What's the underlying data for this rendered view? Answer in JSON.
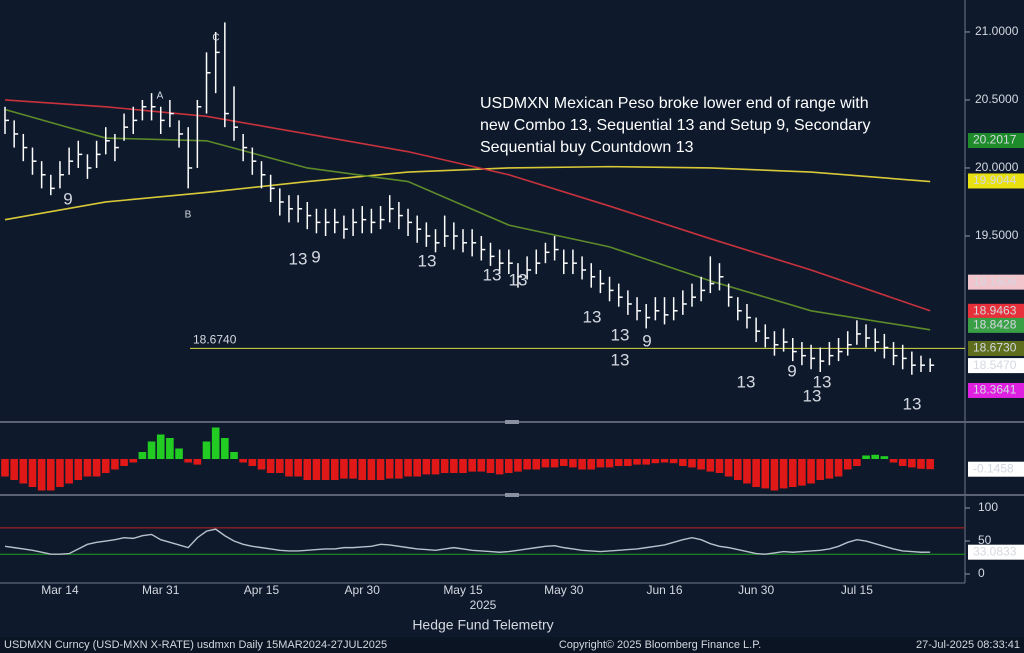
{
  "chart_data": [
    {
      "type": "ohlc",
      "annotation": [
        "USDMXN Mexican Peso broke lower end of range with",
        "new Combo 13, Sequential 13 and Setup 9, Secondary",
        "Sequential buy Countdown 13"
      ],
      "categories": [
        null,
        null,
        null,
        null,
        null,
        null,
        "Mar 14",
        null,
        null,
        null,
        null,
        null,
        null,
        null,
        null,
        null,
        null,
        "Mar 31",
        null,
        null,
        null,
        null,
        null,
        null,
        null,
        null,
        null,
        null,
        "Apr 15",
        null,
        null,
        null,
        null,
        null,
        null,
        null,
        null,
        null,
        null,
        "Apr 30",
        null,
        null,
        null,
        null,
        null,
        null,
        null,
        null,
        null,
        null,
        "May 15",
        null,
        null,
        null,
        null,
        null,
        null,
        null,
        null,
        null,
        null,
        "May 30",
        null,
        null,
        null,
        null,
        null,
        null,
        null,
        null,
        null,
        null,
        "Jun 16",
        null,
        null,
        null,
        null,
        null,
        null,
        null,
        null,
        null,
        "Jun 30",
        null,
        null,
        null,
        null,
        null,
        null,
        null,
        null,
        null,
        null,
        "Jul 15",
        null,
        null,
        null,
        null,
        null,
        null,
        null,
        null
      ],
      "year_label": "2025",
      "ylim": [
        18.147,
        21.235
      ],
      "yticks": [
        {
          "value": 21,
          "label": "21.0000"
        },
        {
          "value": 20.5,
          "label": "20.5000"
        },
        {
          "value": 20,
          "label": "20.0000"
        },
        {
          "value": 19.5,
          "label": "19.5000"
        }
      ],
      "bar_color": "#ffffff",
      "high": [
        20.45,
        20.35,
        20.25,
        20.15,
        20.05,
        19.95,
        20.05,
        20.15,
        20.2,
        20.1,
        20.2,
        20.3,
        20.25,
        20.4,
        20.45,
        20.5,
        20.55,
        20.45,
        20.5,
        20.35,
        20.3,
        20.5,
        20.85,
        21.0,
        21.07,
        20.6,
        20.25,
        20.15,
        20.05,
        19.95,
        19.85,
        19.8,
        19.8,
        19.75,
        19.7,
        19.7,
        19.7,
        19.65,
        19.7,
        19.72,
        19.7,
        19.72,
        19.8,
        19.75,
        19.7,
        19.65,
        19.6,
        19.55,
        19.65,
        19.6,
        19.55,
        19.55,
        19.5,
        19.45,
        19.4,
        19.4,
        19.3,
        19.35,
        19.4,
        19.45,
        19.5,
        19.4,
        19.4,
        19.35,
        19.3,
        19.25,
        19.2,
        19.15,
        19.1,
        19.05,
        19.0,
        19.05,
        19.05,
        19.05,
        19.1,
        19.15,
        19.2,
        19.35,
        19.3,
        19.15,
        19.05,
        19.0,
        18.9,
        18.85,
        18.8,
        18.82,
        18.75,
        18.72,
        18.7,
        18.68,
        18.72,
        18.75,
        18.8,
        18.88,
        18.85,
        18.82,
        18.78,
        18.72,
        18.7,
        18.65,
        18.62,
        18.6
      ],
      "low": [
        20.25,
        20.15,
        20.05,
        19.95,
        19.85,
        19.8,
        19.85,
        19.95,
        20.0,
        19.92,
        20.0,
        20.1,
        20.05,
        20.2,
        20.25,
        20.35,
        20.35,
        20.25,
        20.3,
        20.15,
        19.85,
        20.0,
        20.4,
        20.55,
        20.3,
        20.2,
        20.05,
        19.95,
        19.85,
        19.75,
        19.65,
        19.6,
        19.6,
        19.55,
        19.52,
        19.5,
        19.52,
        19.48,
        19.5,
        19.52,
        19.52,
        19.55,
        19.6,
        19.55,
        19.5,
        19.45,
        19.42,
        19.38,
        19.42,
        19.4,
        19.38,
        19.35,
        19.32,
        19.28,
        19.22,
        19.22,
        19.12,
        19.18,
        19.22,
        19.3,
        19.32,
        19.22,
        19.22,
        19.18,
        19.12,
        19.08,
        19.02,
        18.98,
        18.92,
        18.88,
        18.82,
        18.88,
        18.85,
        18.88,
        18.92,
        18.98,
        19.02,
        19.08,
        19.1,
        18.98,
        18.88,
        18.82,
        18.72,
        18.68,
        18.62,
        18.65,
        18.58,
        18.55,
        18.52,
        18.5,
        18.55,
        18.58,
        18.62,
        18.7,
        18.68,
        18.65,
        18.6,
        18.55,
        18.52,
        18.48,
        18.5,
        18.5
      ],
      "close": [
        20.35,
        20.25,
        20.15,
        20.05,
        19.95,
        19.85,
        19.95,
        20.05,
        20.1,
        20.0,
        20.1,
        20.2,
        20.15,
        20.3,
        20.35,
        20.45,
        20.45,
        20.35,
        20.4,
        20.25,
        20.0,
        20.45,
        20.7,
        20.85,
        20.4,
        20.3,
        20.15,
        20.05,
        19.95,
        19.85,
        19.75,
        19.7,
        19.7,
        19.65,
        19.6,
        19.6,
        19.6,
        19.55,
        19.6,
        19.62,
        19.6,
        19.62,
        19.7,
        19.65,
        19.6,
        19.55,
        19.5,
        19.45,
        19.5,
        19.5,
        19.45,
        19.45,
        19.4,
        19.35,
        19.3,
        19.3,
        19.2,
        19.25,
        19.3,
        19.38,
        19.4,
        19.3,
        19.3,
        19.25,
        19.2,
        19.15,
        19.1,
        19.05,
        19.0,
        18.95,
        18.9,
        18.95,
        18.92,
        18.95,
        19.0,
        19.05,
        19.1,
        19.15,
        19.2,
        19.05,
        18.95,
        18.9,
        18.8,
        18.75,
        18.7,
        18.72,
        18.65,
        18.62,
        18.6,
        18.58,
        18.62,
        18.65,
        18.7,
        18.78,
        18.75,
        18.72,
        18.68,
        18.62,
        18.6,
        18.55,
        18.55,
        18.55
      ],
      "moving_averages": [
        {
          "color": "#d8c838",
          "x": [
            0,
            11,
            22,
            33,
            44,
            55,
            66,
            77,
            88,
            101
          ],
          "values": [
            19.62,
            19.75,
            19.82,
            19.9,
            19.97,
            20.0,
            20.01,
            20.0,
            19.97,
            19.9
          ]
        },
        {
          "color": "#c8323c",
          "x": [
            0,
            11,
            22,
            33,
            44,
            55,
            66,
            77,
            88,
            101
          ],
          "values": [
            20.5,
            20.45,
            20.38,
            20.25,
            20.12,
            19.95,
            19.72,
            19.48,
            19.25,
            18.95
          ]
        },
        {
          "color": "#5e8a2a",
          "x": [
            0,
            11,
            22,
            33,
            44,
            55,
            66,
            77,
            88,
            101
          ],
          "values": [
            20.43,
            20.22,
            20.2,
            20.0,
            19.9,
            19.58,
            19.42,
            19.17,
            18.95,
            18.81
          ]
        }
      ],
      "reference_line": {
        "value": {
          "value": 18.674,
          "label": "18.6740"
        },
        "color": "#d8d840"
      },
      "price_tags": [
        {
          "value": 20.2017,
          "color": "#1e8c2a",
          "text_color": "#ffffff"
        },
        {
          "value": 19.9044,
          "color": "#e8e010",
          "text_color": "#000000"
        },
        {
          "value": 19.1606,
          "color": "#f2c4cc",
          "text_color": "#202020"
        },
        {
          "value": 18.9463,
          "color": "#e8303a",
          "text_color": "#ffffff"
        },
        {
          "value": 18.8428,
          "color": "#3aa046",
          "text_color": "#ffffff"
        },
        {
          "value": {
            "value": 18.673,
            "label": "18.6730"
          },
          "color": "#5e6e1c",
          "text_color": "#ffffff"
        },
        {
          "value": {
            "value": 18.547,
            "label": "18.5470"
          },
          "color": "#ffffff",
          "text_color": "#000000"
        },
        {
          "value": 18.3641,
          "color": "#e020e0",
          "text_color": "#ffffff"
        }
      ],
      "td_labels": [
        {
          "text": "9",
          "color": "#3ad13a"
        },
        {
          "text": "A",
          "color": "#e8e020"
        },
        {
          "text": "B",
          "color": "#e8e020"
        },
        {
          "text": "C",
          "color": "#e8e020"
        },
        {
          "text": "13",
          "color": "#e8902a"
        },
        {
          "text": "9",
          "color": "#3ad13a"
        },
        {
          "text": "13",
          "color": "#e0242a"
        },
        {
          "text": "13",
          "color": "#c030d0"
        },
        {
          "text": "13",
          "color": "#e8902a"
        },
        {
          "text": "13",
          "color": "#c030d0"
        },
        {
          "text": "13",
          "color": "#e0242a"
        },
        {
          "text": "13",
          "color": "#c030d0"
        },
        {
          "text": "9",
          "color": "#3ad13a"
        },
        {
          "text": "13",
          "color": "#c030d0"
        },
        {
          "text": "9",
          "color": "#3ad13a"
        },
        {
          "text": "13",
          "color": "#e8902a"
        },
        {
          "text": "13",
          "color": "#c030d0"
        },
        {
          "text": "13",
          "color": "#e0242a"
        }
      ]
    },
    {
      "type": "bar",
      "values": [
        -0.25,
        -0.3,
        -0.35,
        -0.4,
        -0.45,
        -0.45,
        -0.4,
        -0.35,
        -0.3,
        -0.25,
        -0.25,
        -0.2,
        -0.15,
        -0.1,
        -0.05,
        0.1,
        0.25,
        0.35,
        0.3,
        0.15,
        -0.05,
        -0.08,
        0.25,
        0.45,
        0.3,
        0.1,
        -0.05,
        -0.1,
        -0.15,
        -0.2,
        -0.2,
        -0.25,
        -0.25,
        -0.3,
        -0.3,
        -0.3,
        -0.3,
        -0.28,
        -0.28,
        -0.3,
        -0.3,
        -0.3,
        -0.28,
        -0.28,
        -0.25,
        -0.25,
        -0.22,
        -0.22,
        -0.2,
        -0.2,
        -0.2,
        -0.18,
        -0.18,
        -0.2,
        -0.22,
        -0.2,
        -0.18,
        -0.15,
        -0.15,
        -0.12,
        -0.12,
        -0.1,
        -0.12,
        -0.15,
        -0.15,
        -0.12,
        -0.12,
        -0.1,
        -0.1,
        -0.08,
        -0.08,
        -0.06,
        -0.05,
        -0.06,
        -0.1,
        -0.12,
        -0.15,
        -0.18,
        -0.2,
        -0.25,
        -0.3,
        -0.35,
        -0.4,
        -0.42,
        -0.45,
        -0.42,
        -0.4,
        -0.38,
        -0.35,
        -0.3,
        -0.28,
        -0.25,
        -0.15,
        -0.1,
        0.05,
        0.06,
        0.04,
        -0.05,
        -0.1,
        -0.12,
        -0.14,
        -0.1458
      ],
      "ylim": [
        -0.5,
        0.5
      ],
      "positive_color": "#22cc22",
      "negative_color": "#e01818",
      "last_tag": -0.1458
    },
    {
      "type": "line",
      "values": [
        42,
        40,
        38,
        36,
        33,
        30,
        30,
        31,
        38,
        45,
        48,
        50,
        52,
        55,
        54,
        58,
        60,
        52,
        48,
        44,
        40,
        55,
        65,
        68,
        58,
        50,
        45,
        42,
        40,
        38,
        36,
        35,
        35,
        36,
        37,
        38,
        38,
        40,
        40,
        41,
        42,
        45,
        44,
        42,
        40,
        38,
        37,
        36,
        38,
        40,
        38,
        36,
        35,
        34,
        33,
        34,
        36,
        38,
        40,
        42,
        43,
        40,
        38,
        36,
        35,
        34,
        35,
        36,
        37,
        38,
        40,
        42,
        44,
        48,
        52,
        55,
        52,
        46,
        42,
        40,
        37,
        34,
        31,
        30,
        32,
        34,
        33,
        34,
        35,
        36,
        38,
        42,
        48,
        52,
        50,
        46,
        42,
        38,
        35,
        34,
        33,
        33.0833
      ],
      "color": "#b8c0cc",
      "ylim": [
        -13.6,
        116.7
      ],
      "yticks": [
        100,
        50,
        0
      ],
      "levels": [
        {
          "value": 70,
          "color": "#c02020"
        },
        {
          "value": 30,
          "color": "#20a020"
        }
      ],
      "last_tag": 33.0833
    }
  ],
  "footer": {
    "source": "Hedge Fund Telemetry",
    "security": "USDMXN Curncy (USD-MXN X-RATE)  usdmxn  Daily 15MAR2024-27JUL2025",
    "copyright": "Copyright© 2025 Bloomberg Finance L.P.",
    "timestamp": "27-Jul-2025 08:33:41"
  }
}
